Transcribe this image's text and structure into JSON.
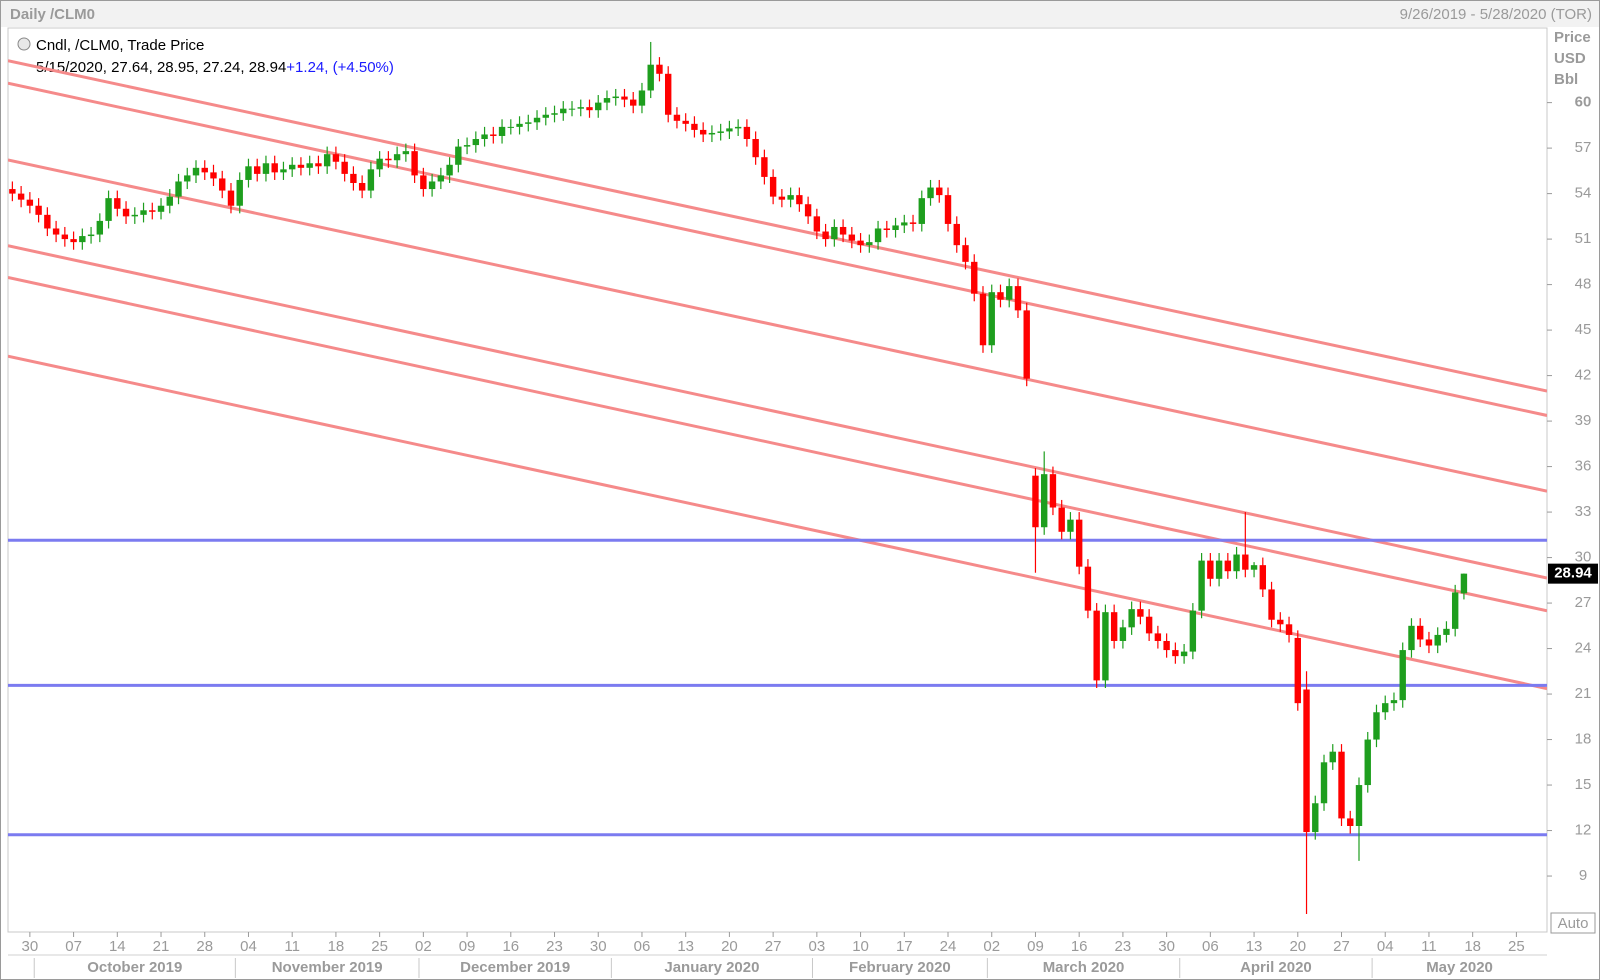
{
  "chart_data": {
    "type": "candlestick",
    "title": "Daily /CLM0",
    "date_range": "9/26/2019 - 5/28/2020 (TOR)",
    "legend": {
      "title": "Cndl, /CLM0, Trade Price",
      "date": "5/15/2020",
      "change": "+1.24",
      "change_pct": "(+4.50%)"
    },
    "y_axis_label": [
      "Price",
      "USD",
      "Bbl"
    ],
    "auto_button": "Auto",
    "up_color": "#1e9e1e",
    "down_color": "#ff0000",
    "ylim": [
      5.31,
      64.92
    ],
    "yticks": [
      9,
      12,
      15,
      18,
      21,
      24,
      27,
      30,
      33,
      36,
      39,
      42,
      45,
      48,
      51,
      54,
      57,
      60
    ],
    "categories": [
      null,
      null,
      "30",
      null,
      null,
      null,
      null,
      "07",
      null,
      null,
      null,
      null,
      "14",
      null,
      null,
      null,
      null,
      "21",
      null,
      null,
      null,
      null,
      "28",
      null,
      null,
      null,
      null,
      "04",
      null,
      null,
      null,
      null,
      "11",
      null,
      null,
      null,
      null,
      "18",
      null,
      null,
      null,
      null,
      "25",
      null,
      null,
      null,
      null,
      "02",
      null,
      null,
      null,
      null,
      "09",
      null,
      null,
      null,
      null,
      "16",
      null,
      null,
      null,
      null,
      "23",
      null,
      null,
      null,
      null,
      "30",
      null,
      null,
      null,
      null,
      "06",
      null,
      null,
      null,
      null,
      "13",
      null,
      null,
      null,
      null,
      "20",
      null,
      null,
      null,
      null,
      "27",
      null,
      null,
      null,
      null,
      "03",
      null,
      null,
      null,
      null,
      "10",
      null,
      null,
      null,
      null,
      "17",
      null,
      null,
      null,
      null,
      "24",
      null,
      null,
      null,
      null,
      "02",
      null,
      null,
      null,
      null,
      "09",
      null,
      null,
      null,
      null,
      "16",
      null,
      null,
      null,
      null,
      "23",
      null,
      null,
      null,
      null,
      "30",
      null,
      null,
      null,
      null,
      "06",
      null,
      null,
      null,
      null,
      "13",
      null,
      null,
      null,
      null,
      "20",
      null,
      null,
      null,
      null,
      "27",
      null,
      null,
      null,
      null,
      "04",
      null,
      null,
      null,
      null,
      "11",
      null,
      null,
      null,
      null,
      "18",
      null,
      null,
      null,
      null,
      "25",
      null,
      null,
      null
    ],
    "months": [
      "October 2019",
      "November 2019",
      "December 2019",
      "January 2020",
      "February 2020",
      "March 2020",
      "April 2020",
      "May 2020"
    ],
    "open": [
      54.3,
      54.0,
      53.6,
      53.2,
      52.6,
      51.7,
      51.3,
      51.0,
      50.8,
      51.2,
      51.3,
      52.2,
      53.7,
      53.0,
      52.5,
      52.6,
      52.9,
      52.8,
      53.2,
      53.8,
      54.8,
      55.2,
      55.7,
      55.4,
      55.0,
      54.2,
      53.2,
      54.9,
      55.8,
      55.3,
      56.0,
      55.4,
      55.6,
      55.9,
      55.7,
      56.0,
      55.8,
      56.6,
      56.1,
      55.3,
      54.7,
      54.2,
      55.6,
      56.3,
      56.2,
      56.6,
      56.8,
      55.2,
      54.3,
      54.8,
      55.2,
      55.9,
      57.1,
      57.2,
      57.6,
      57.9,
      57.8,
      58.4,
      58.4,
      58.6,
      58.7,
      59.0,
      59.2,
      59.3,
      59.6,
      59.6,
      59.7,
      59.5,
      60.0,
      60.3,
      60.4,
      60.2,
      59.8,
      60.8,
      62.5,
      61.9,
      59.2,
      58.8,
      58.6,
      58.2,
      57.9,
      58.0,
      58.1,
      58.3,
      58.4,
      57.6,
      56.4,
      55.1,
      53.8,
      53.6,
      53.9,
      53.3,
      52.5,
      51.5,
      51.0,
      51.8,
      51.3,
      50.9,
      50.6,
      50.8,
      51.7,
      51.6,
      51.9,
      52.1,
      52.0,
      53.7,
      54.4,
      53.9,
      52.0,
      50.6,
      49.5,
      47.4,
      44.0,
      47.5,
      47.0,
      47.9,
      46.3,
      35.4,
      32.0,
      35.5,
      33.3,
      31.7,
      32.5,
      29.4,
      26.5,
      21.9,
      26.4,
      24.5,
      25.4,
      26.6,
      26.1,
      25.0,
      24.5,
      23.9,
      23.5,
      23.8,
      26.5,
      29.8,
      28.6,
      29.8,
      29.1,
      30.2,
      29.2,
      29.5,
      27.9,
      25.9,
      25.6,
      24.7,
      21.3,
      11.9,
      13.8,
      16.5,
      17.2,
      12.8,
      12.3,
      15.0,
      18.0,
      19.8,
      20.4,
      20.6,
      23.9,
      25.5,
      24.6,
      24.2,
      24.9,
      25.3,
      27.64,
      null,
      null,
      null,
      null,
      null,
      null,
      null,
      null,
      null
    ],
    "high": [
      54.8,
      54.5,
      54.1,
      53.7,
      53.1,
      52.2,
      51.8,
      51.5,
      51.7,
      51.8,
      52.7,
      54.2,
      54.2,
      53.5,
      53.1,
      53.4,
      53.4,
      53.7,
      54.3,
      55.3,
      55.7,
      56.2,
      56.2,
      55.9,
      55.5,
      54.7,
      55.4,
      56.3,
      56.3,
      56.5,
      56.5,
      56.1,
      56.4,
      56.4,
      56.5,
      56.5,
      57.1,
      57.1,
      56.6,
      55.8,
      55.2,
      56.1,
      56.8,
      56.8,
      57.1,
      57.3,
      57.3,
      55.7,
      55.3,
      55.7,
      56.4,
      57.6,
      57.7,
      58.1,
      58.4,
      58.4,
      58.9,
      58.9,
      59.1,
      59.2,
      59.5,
      59.7,
      59.8,
      60.1,
      60.1,
      60.2,
      60.2,
      60.5,
      60.8,
      60.9,
      60.9,
      60.7,
      61.3,
      64.0,
      63.0,
      62.4,
      59.7,
      59.3,
      59.1,
      58.7,
      58.5,
      58.6,
      58.8,
      58.9,
      58.9,
      58.1,
      56.9,
      55.6,
      54.3,
      54.4,
      54.4,
      53.8,
      53.0,
      52.0,
      52.3,
      52.3,
      51.8,
      51.4,
      51.3,
      52.2,
      52.2,
      52.4,
      52.6,
      52.6,
      54.2,
      54.9,
      54.9,
      54.4,
      52.5,
      51.1,
      50.0,
      47.9,
      48.0,
      48.0,
      48.4,
      48.4,
      46.8,
      35.9,
      37.0,
      36.0,
      33.8,
      33.0,
      33.0,
      29.9,
      27.0,
      26.9,
      26.9,
      25.9,
      27.1,
      27.1,
      26.6,
      25.5,
      25.0,
      24.4,
      24.3,
      27.0,
      30.3,
      30.3,
      30.3,
      30.3,
      30.7,
      33.0,
      29.7,
      30.0,
      28.4,
      26.4,
      26.1,
      25.2,
      22.5,
      14.3,
      17.0,
      17.7,
      17.7,
      13.3,
      15.5,
      18.5,
      20.3,
      20.9,
      21.1,
      24.4,
      26.0,
      26.0,
      25.1,
      25.4,
      25.8,
      28.2,
      28.95,
      null,
      null,
      null,
      null,
      null,
      null,
      null,
      null,
      null
    ],
    "low": [
      53.5,
      53.1,
      52.7,
      52.1,
      51.2,
      50.8,
      50.5,
      50.3,
      50.3,
      50.7,
      50.8,
      51.7,
      52.5,
      52.0,
      52.0,
      52.1,
      52.3,
      52.3,
      52.7,
      53.3,
      54.3,
      54.7,
      54.9,
      54.5,
      53.7,
      52.7,
      52.7,
      54.4,
      54.8,
      54.8,
      54.9,
      54.9,
      55.1,
      55.2,
      55.2,
      55.3,
      55.3,
      55.6,
      54.8,
      54.2,
      53.7,
      53.7,
      55.1,
      55.7,
      55.7,
      56.1,
      54.7,
      53.8,
      53.8,
      54.3,
      54.7,
      55.4,
      56.6,
      56.7,
      57.1,
      57.3,
      57.3,
      57.9,
      57.9,
      58.1,
      58.2,
      58.5,
      58.7,
      58.8,
      59.1,
      59.1,
      59.0,
      59.0,
      59.5,
      59.8,
      59.7,
      59.3,
      59.3,
      60.3,
      61.4,
      58.7,
      58.3,
      58.1,
      57.7,
      57.4,
      57.4,
      57.5,
      57.6,
      57.8,
      57.1,
      55.9,
      54.6,
      53.3,
      53.1,
      53.1,
      52.8,
      52.0,
      51.0,
      50.5,
      50.5,
      50.8,
      50.4,
      50.1,
      50.1,
      50.3,
      51.1,
      51.1,
      51.4,
      51.5,
      51.5,
      53.2,
      53.4,
      51.5,
      50.1,
      49.0,
      46.9,
      43.5,
      43.5,
      46.5,
      46.5,
      45.8,
      41.3,
      29.0,
      31.5,
      32.8,
      31.2,
      31.2,
      28.9,
      26.0,
      21.4,
      21.4,
      24.0,
      24.0,
      24.9,
      25.6,
      24.5,
      24.0,
      23.4,
      23.0,
      23.0,
      23.3,
      26.0,
      28.1,
      28.1,
      28.6,
      28.6,
      28.7,
      28.7,
      27.4,
      25.4,
      25.1,
      24.4,
      19.9,
      6.5,
      11.4,
      13.3,
      16.0,
      12.3,
      11.8,
      10.0,
      14.5,
      17.5,
      19.3,
      19.9,
      20.1,
      23.4,
      24.1,
      23.7,
      23.7,
      24.4,
      24.8,
      27.24,
      null,
      null,
      null,
      null,
      null,
      null,
      null,
      null,
      null
    ],
    "close": [
      54.0,
      53.6,
      53.2,
      52.6,
      51.7,
      51.3,
      51.0,
      50.8,
      51.2,
      51.3,
      52.2,
      53.7,
      53.0,
      52.5,
      52.6,
      52.9,
      52.8,
      53.2,
      53.8,
      54.8,
      55.2,
      55.7,
      55.4,
      55.0,
      54.2,
      53.2,
      54.9,
      55.8,
      55.3,
      56.0,
      55.4,
      55.6,
      55.9,
      55.7,
      56.0,
      55.8,
      56.6,
      56.1,
      55.3,
      54.7,
      54.2,
      55.6,
      56.3,
      56.2,
      56.6,
      56.8,
      55.2,
      54.3,
      54.8,
      55.2,
      55.9,
      57.1,
      57.2,
      57.6,
      57.9,
      57.8,
      58.4,
      58.4,
      58.6,
      58.7,
      59.0,
      59.2,
      59.3,
      59.6,
      59.6,
      59.7,
      59.5,
      60.0,
      60.3,
      60.4,
      60.2,
      59.8,
      60.8,
      62.5,
      61.9,
      59.2,
      58.8,
      58.6,
      58.2,
      57.9,
      58.0,
      58.1,
      58.3,
      58.4,
      57.6,
      56.4,
      55.1,
      53.8,
      53.6,
      53.9,
      53.3,
      52.5,
      51.5,
      51.0,
      51.8,
      51.3,
      50.9,
      50.6,
      50.8,
      51.7,
      51.6,
      51.9,
      52.1,
      52.0,
      53.7,
      54.4,
      53.9,
      52.0,
      50.6,
      49.5,
      47.4,
      44.0,
      47.5,
      47.0,
      47.9,
      46.3,
      41.8,
      32.0,
      35.5,
      33.3,
      31.7,
      32.5,
      29.4,
      26.5,
      21.9,
      26.4,
      24.5,
      25.4,
      26.6,
      26.1,
      25.0,
      24.5,
      23.9,
      23.5,
      23.8,
      26.5,
      29.8,
      28.6,
      29.8,
      29.1,
      30.2,
      29.2,
      29.5,
      27.9,
      25.9,
      25.6,
      24.9,
      20.4,
      11.9,
      13.8,
      16.5,
      17.2,
      12.8,
      12.3,
      15.0,
      18.0,
      19.8,
      20.4,
      20.6,
      23.9,
      25.5,
      24.6,
      24.2,
      24.9,
      25.3,
      27.7,
      28.94,
      null,
      null,
      null,
      null,
      null,
      null,
      null,
      null,
      null
    ],
    "trendline_color": "#f58a8a",
    "trendlines": [
      [
        62.76,
        40.98
      ],
      [
        61.28,
        39.37
      ],
      [
        56.22,
        34.38
      ],
      [
        50.56,
        28.65
      ],
      [
        48.47,
        26.49
      ],
      [
        43.28,
        21.36
      ]
    ],
    "hline_color": "#7b7bf0",
    "hlines": [
      31.14,
      21.57,
      11.72
    ]
  }
}
